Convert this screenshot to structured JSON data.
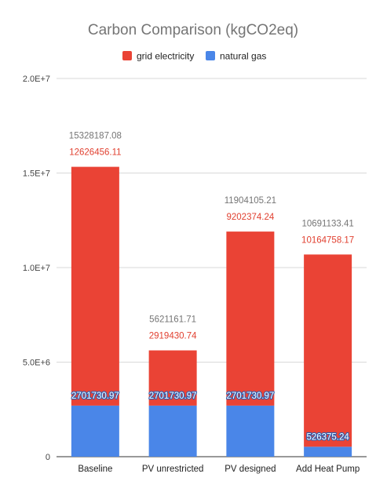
{
  "chart_data": {
    "type": "bar",
    "stacked": true,
    "title": "Carbon Comparison (kgCO2eq)",
    "categories": [
      "Baseline",
      "PV unrestricted",
      "PV designed",
      "Add Heat Pump"
    ],
    "series": [
      {
        "name": "natural gas",
        "color": "#4a86e8",
        "values": [
          2701730.97,
          2701730.97,
          2701730.97,
          526375.24
        ],
        "labels": [
          "2701730.97",
          "2701730.97",
          "2701730.97",
          "526375.24"
        ]
      },
      {
        "name": "grid electricity",
        "color": "#ea4335",
        "values": [
          12626456.11,
          2919430.74,
          9202374.24,
          10164758.17
        ],
        "labels": [
          "12626456.11",
          "2919430.74",
          "9202374.24",
          "10164758.17"
        ]
      }
    ],
    "totals": {
      "values": [
        15328187.08,
        5621161.71,
        11904105.21,
        10691133.41
      ],
      "labels": [
        "15328187.08",
        "5621161.71",
        "11904105.21",
        "10691133.41"
      ]
    },
    "legend": {
      "position": "top",
      "entries": [
        "grid electricity",
        "natural gas"
      ]
    },
    "ylim": [
      0,
      20000000
    ],
    "yticks": [
      {
        "value": 0,
        "label": "0"
      },
      {
        "value": 5000000,
        "label": "5.0E+6"
      },
      {
        "value": 10000000,
        "label": "1.0E+7"
      },
      {
        "value": 15000000,
        "label": "1.5E+7"
      },
      {
        "value": 20000000,
        "label": "2.0E+7"
      }
    ],
    "grid": true
  }
}
